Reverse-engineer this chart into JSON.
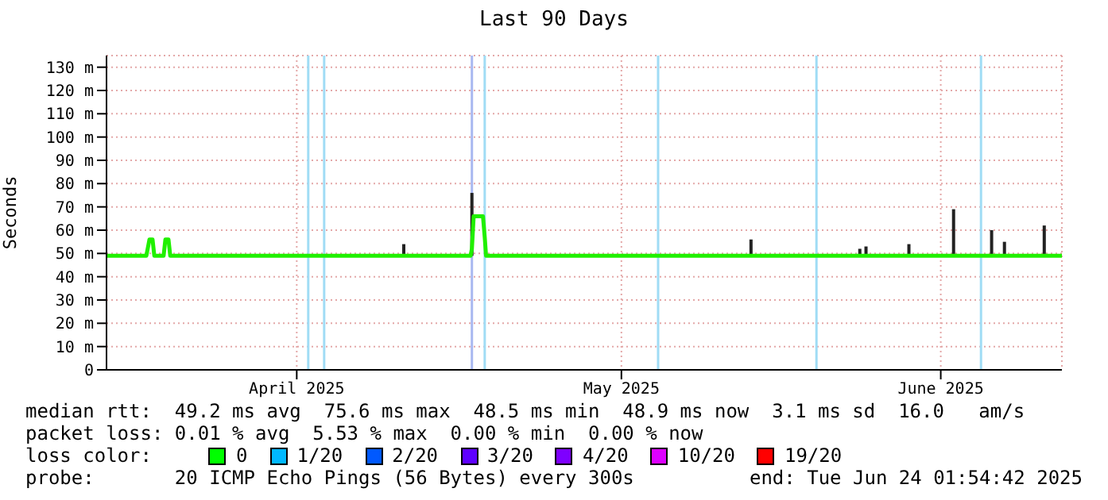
{
  "chart_data": {
    "type": "line",
    "title": "Last 90 Days",
    "ylabel": "Seconds",
    "xlim": [
      "2025-03-26T01:54",
      "2025-06-24T01:54"
    ],
    "xticks": [
      {
        "value": "2025-04-13T00:00",
        "label": "April 2025"
      },
      {
        "value": "2025-05-13T14:00",
        "label": "May 2025"
      },
      {
        "value": "2025-06-12T16:00",
        "label": "June 2025"
      }
    ],
    "ylim": [
      0,
      135
    ],
    "yticks": [
      0,
      {
        "value": 10,
        "label": "10 m"
      },
      {
        "value": 20,
        "label": "20 m"
      },
      {
        "value": 30,
        "label": "30 m"
      },
      {
        "value": 40,
        "label": "40 m"
      },
      {
        "value": 50,
        "label": "50 m"
      },
      {
        "value": 60,
        "label": "60 m"
      },
      {
        "value": 70,
        "label": "70 m"
      },
      {
        "value": 80,
        "label": "80 m"
      },
      {
        "value": 90,
        "label": "90 m"
      },
      {
        "value": 100,
        "label": "100 m"
      },
      {
        "value": 110,
        "label": "110 m"
      },
      {
        "value": 120,
        "label": "120 m"
      },
      {
        "value": 130,
        "label": "130 m"
      }
    ],
    "grid": true,
    "marker": "none",
    "line_style": "solid",
    "ref_lines": [
      {
        "axis": "x",
        "value": "2025-04-14T02:00",
        "color": "#a0dcf5"
      },
      {
        "axis": "x",
        "value": "2025-04-15T14:00",
        "color": "#a0dcf5"
      },
      {
        "axis": "x",
        "value": "2025-04-29T12:00",
        "color": "#a8b8f0"
      },
      {
        "axis": "x",
        "value": "2025-04-30T17:00",
        "color": "#a0dcf5"
      },
      {
        "axis": "x",
        "value": "2025-05-17T01:00",
        "color": "#a0dcf5"
      },
      {
        "axis": "x",
        "value": "2025-05-31T23:00",
        "color": "#a0dcf5"
      },
      {
        "axis": "x",
        "value": "2025-06-16T11:00",
        "color": "#a0dcf5"
      }
    ],
    "series": [
      {
        "color": "#222222",
        "x": [
          "2025-04-23T02:00",
          "2025-04-23T02:00"
        ],
        "values": [
          49,
          54
        ]
      },
      {
        "color": "#222222",
        "x": [
          "2025-04-29T12:00",
          "2025-04-29T12:00"
        ],
        "values": [
          49,
          76
        ]
      },
      {
        "color": "#222222",
        "x": [
          "2025-05-25T19:00",
          "2025-05-25T19:00"
        ],
        "values": [
          49,
          56
        ]
      },
      {
        "color": "#222222",
        "x": [
          "2025-06-05T01:00",
          "2025-06-05T01:00"
        ],
        "values": [
          49,
          52
        ]
      },
      {
        "color": "#222222",
        "x": [
          "2025-06-05T15:00",
          "2025-06-05T15:00"
        ],
        "values": [
          49,
          53
        ]
      },
      {
        "color": "#222222",
        "x": [
          "2025-06-09T16:00",
          "2025-06-09T16:00"
        ],
        "values": [
          49,
          54
        ]
      },
      {
        "color": "#222222",
        "x": [
          "2025-06-13T21:00",
          "2025-06-13T21:00"
        ],
        "values": [
          49,
          69
        ]
      },
      {
        "color": "#222222",
        "x": [
          "2025-06-17T11:00",
          "2025-06-17T11:00"
        ],
        "values": [
          49,
          60
        ]
      },
      {
        "color": "#222222",
        "x": [
          "2025-06-18T16:00",
          "2025-06-18T16:00"
        ],
        "values": [
          49,
          55
        ]
      },
      {
        "color": "#222222",
        "x": [
          "2025-06-22T10:00",
          "2025-06-22T10:00"
        ],
        "values": [
          49,
          62
        ]
      },
      {
        "color": "#20f000",
        "x": [
          "2025-03-26T01:54",
          "2025-03-29T20:00",
          "2025-03-30T03:00",
          "2025-03-30T10:00",
          "2025-03-30T14:00",
          "2025-03-31T11:00",
          "2025-03-31T15:00",
          "2025-03-31T22:00",
          "2025-04-01T02:00",
          "2025-04-29T09:00",
          "2025-04-29T12:00",
          "2025-04-29T16:00",
          "2025-04-30T13:00",
          "2025-04-30T17:00",
          "2025-04-30T20:00",
          "2025-06-24T01:54"
        ],
        "values": [
          49,
          49,
          56,
          56,
          49,
          49,
          56,
          56,
          49,
          49,
          52,
          66,
          66,
          57,
          49,
          49
        ]
      }
    ],
    "annotations": [
      "median rtt:  49.2 ms avg  75.6 ms max  48.5 ms min  48.9 ms now  3.1 ms sd  16.0   am/s",
      "packet loss: 0.01 % avg  5.53 % max  0.00 % min  0.00 % now",
      "loss color:",
      "0",
      "1/20",
      "2/20",
      "3/20",
      "4/20",
      "10/20",
      "19/20",
      "probe:       20 ICMP Echo Pings (56 Bytes) every 300s",
      "end: Tue Jun 24 01:54:42 2025"
    ]
  }
}
